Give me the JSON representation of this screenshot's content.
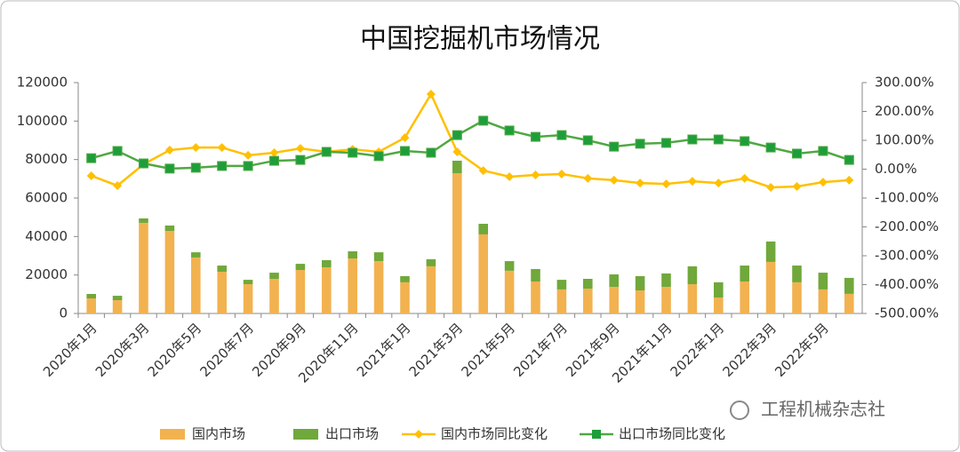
{
  "chart_data": {
    "type": "bar",
    "title": "中国挖掘机市场情况",
    "categories": [
      "2020年1月",
      null,
      "2020年3月",
      null,
      "2020年5月",
      null,
      "2020年7月",
      null,
      "2020年9月",
      null,
      "2020年11月",
      null,
      "2021年1月",
      null,
      "2021年3月",
      null,
      "2021年5月",
      null,
      "2021年7月",
      null,
      "2021年9月",
      null,
      "2021年11月",
      null,
      "2022年1月",
      null,
      "2022年3月",
      null,
      "2022年5月",
      null
    ],
    "series": [
      {
        "name": "国内市场",
        "type": "bar",
        "color": "#f2b250",
        "values": [
          7850,
          6900,
          47100,
          42900,
          29100,
          21700,
          15200,
          18000,
          22600,
          24000,
          28600,
          27200,
          16200,
          24500,
          72900,
          41100,
          22200,
          16600,
          12500,
          12900,
          13800,
          12000,
          13800,
          15200,
          8300,
          16600,
          26800,
          16200,
          12500,
          10200
        ]
      },
      {
        "name": "出口市场",
        "type": "bar",
        "color": "#70a83b",
        "values": [
          2300,
          2300,
          2300,
          2800,
          2700,
          3200,
          2300,
          3200,
          3200,
          3700,
          3700,
          4600,
          3200,
          3700,
          6500,
          5500,
          5000,
          6500,
          5000,
          5100,
          6500,
          7400,
          7000,
          9300,
          7900,
          8300,
          10600,
          8700,
          8700,
          8300
        ]
      },
      {
        "name": "国内市场同比变化",
        "type": "line",
        "axis": "y2",
        "marker": "diamond",
        "color": "#ffc000",
        "values": [
          -23,
          -57,
          17,
          66,
          75,
          75,
          48,
          57,
          72,
          60,
          69,
          60,
          109,
          260,
          60,
          -5,
          -26,
          -20,
          -17,
          -32,
          -38,
          -48,
          -51,
          -42,
          -48,
          -32,
          -63,
          -60,
          -45,
          -38
        ]
      },
      {
        "name": "出口市场同比变化",
        "type": "line",
        "axis": "y2",
        "marker": "square",
        "color": "#4fa843",
        "marker_fill": "#1e9e3a",
        "values": [
          38,
          63,
          20,
          2,
          5,
          11,
          11,
          29,
          32,
          60,
          57,
          45,
          63,
          57,
          118,
          168,
          134,
          112,
          118,
          100,
          78,
          88,
          91,
          103,
          103,
          97,
          75,
          54,
          63,
          32
        ]
      }
    ],
    "ylim": [
      0,
      120000
    ],
    "yticks": [
      0,
      20000,
      40000,
      60000,
      80000,
      100000,
      120000
    ],
    "y2lim": [
      -500,
      300
    ],
    "y2ticks": [
      {
        "value": -500,
        "label": "-500.00%"
      },
      {
        "value": -400,
        "label": "-400.00%"
      },
      {
        "value": -300,
        "label": "-300.00%"
      },
      {
        "value": -200,
        "label": "-200.00%"
      },
      {
        "value": -100,
        "label": "-100.00%"
      },
      {
        "value": 0,
        "label": "0.00%"
      },
      {
        "value": 100,
        "label": "100.00%"
      },
      {
        "value": 200,
        "label": "200.00%"
      },
      {
        "value": 300,
        "label": "300.00%"
      }
    ],
    "grid": false,
    "legend": "bottom",
    "watermark": "工程机械杂志社"
  }
}
